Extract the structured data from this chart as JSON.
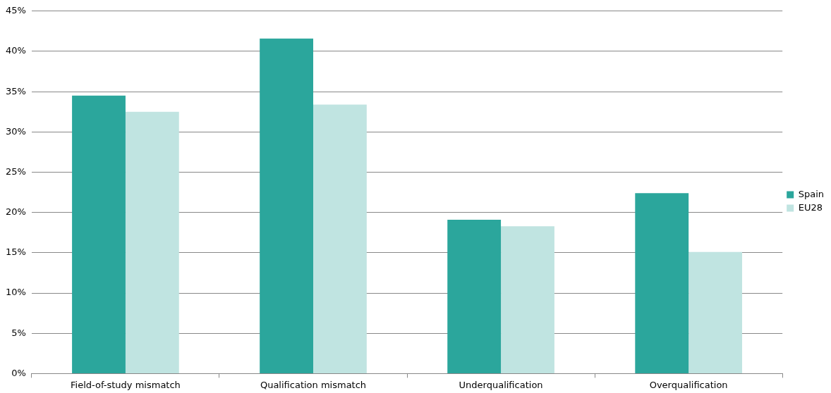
{
  "chart_data": {
    "type": "bar",
    "categories": [
      "Field-of-study mismatch",
      "Qualification mismatch",
      "Underqualification",
      "Overqualification"
    ],
    "series": [
      {
        "name": "Spain",
        "color": "#2ba69c",
        "values": [
          34.5,
          41.6,
          19.1,
          22.4
        ]
      },
      {
        "name": "EU28",
        "color": "#c0e4e1",
        "values": [
          32.5,
          33.4,
          18.3,
          15.1
        ]
      }
    ],
    "ylim": [
      0,
      45
    ],
    "yticks": [
      {
        "value": 0,
        "label": "0%"
      },
      {
        "value": 5,
        "label": "5%"
      },
      {
        "value": 10,
        "label": "10%"
      },
      {
        "value": 15,
        "label": "15%"
      },
      {
        "value": 20,
        "label": "20%"
      },
      {
        "value": 25,
        "label": "25%"
      },
      {
        "value": 30,
        "label": "30%"
      },
      {
        "value": 35,
        "label": "35%"
      },
      {
        "value": 40,
        "label": "40%"
      },
      {
        "value": 45,
        "label": "45%"
      }
    ],
    "grid": "y",
    "legend": "right"
  }
}
